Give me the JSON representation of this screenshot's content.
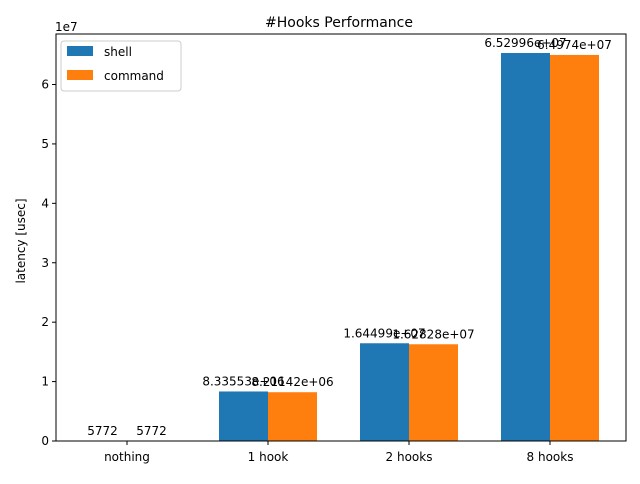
{
  "chart_data": {
    "type": "bar",
    "title": "#Hooks Performance",
    "xlabel": "",
    "ylabel": "latency [usec]",
    "y_offset_label": "1e7",
    "categories": [
      "nothing",
      "1 hook",
      "2 hooks",
      "8 hooks"
    ],
    "series": [
      {
        "name": "shell",
        "color": "#1f77b4",
        "values": [
          5772,
          8335530,
          16449900,
          65299600
        ],
        "labels": [
          "5772",
          "8.33553e+06",
          "1.64499e+07",
          "6.52996e+07"
        ]
      },
      {
        "name": "command",
        "color": "#ff7f0e",
        "values": [
          5772,
          8211420,
          16282800,
          64974000
        ],
        "labels": [
          "5772",
          "8.21142e+06",
          "1.62828e+07",
          "6.4974e+07"
        ]
      }
    ],
    "ylim": [
      0,
      68500000
    ],
    "yticks": [
      0,
      10000000,
      20000000,
      30000000,
      40000000,
      50000000,
      60000000
    ],
    "ytick_labels": [
      "0",
      "1",
      "2",
      "3",
      "4",
      "5",
      "6"
    ],
    "legend_position": "top-left",
    "grid": false
  }
}
